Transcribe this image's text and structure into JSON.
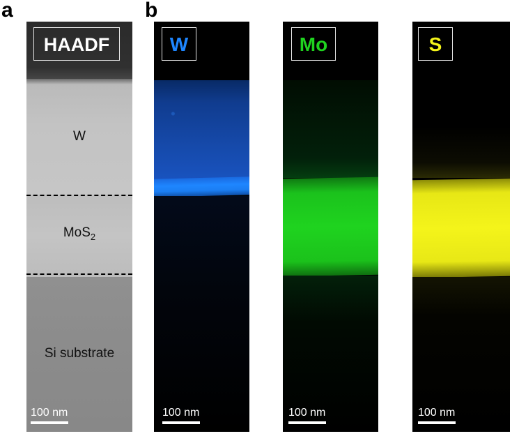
{
  "panels": {
    "a": {
      "letter": "a",
      "title": "HAADF",
      "layers": {
        "w": "W",
        "mos2_base": "MoS",
        "mos2_sub": "2",
        "si": "Si substrate"
      },
      "scale": "100 nm"
    },
    "b": {
      "letter": "b",
      "maps": [
        {
          "element": "W",
          "color": "#1e86ff",
          "scale": "100 nm"
        },
        {
          "element": "Mo",
          "color": "#1fd31f",
          "scale": "100 nm"
        },
        {
          "element": "S",
          "color": "#f4f41a",
          "scale": "100 nm"
        }
      ]
    }
  }
}
